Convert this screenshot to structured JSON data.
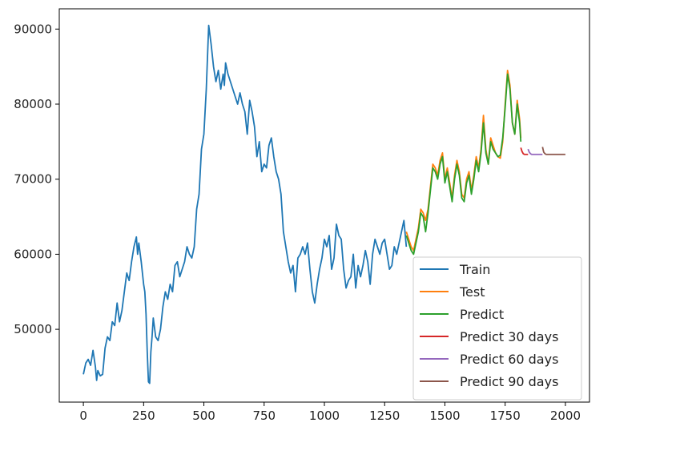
{
  "chart_data": {
    "type": "line",
    "title": "",
    "xlabel": "",
    "ylabel": "",
    "xlim": [
      -100,
      2100
    ],
    "ylim": [
      40300,
      92700
    ],
    "x_ticks": [
      0,
      250,
      500,
      750,
      1000,
      1250,
      1500,
      1750,
      2000
    ],
    "y_ticks": [
      50000,
      60000,
      70000,
      80000,
      90000
    ],
    "x_tick_labels": [
      "0",
      "250",
      "500",
      "750",
      "1000",
      "1250",
      "1500",
      "1750",
      "2000"
    ],
    "y_tick_labels": [
      "50000",
      "60000",
      "70000",
      "80000",
      "90000"
    ],
    "grid": false,
    "legend_position": "lower right",
    "series": [
      {
        "name": "Train",
        "color": "#1f77b4",
        "x": [
          0,
          10,
          20,
          30,
          40,
          50,
          55,
          60,
          70,
          80,
          90,
          100,
          110,
          120,
          130,
          140,
          150,
          160,
          170,
          180,
          190,
          200,
          210,
          220,
          225,
          230,
          240,
          250,
          255,
          260,
          265,
          270,
          275,
          280,
          285,
          290,
          300,
          310,
          320,
          330,
          340,
          350,
          360,
          370,
          380,
          390,
          400,
          410,
          420,
          430,
          440,
          450,
          460,
          470,
          480,
          490,
          500,
          510,
          520,
          530,
          540,
          550,
          560,
          570,
          575,
          580,
          585,
          590,
          600,
          610,
          620,
          630,
          640,
          650,
          660,
          670,
          680,
          690,
          700,
          710,
          720,
          730,
          740,
          750,
          760,
          770,
          780,
          790,
          800,
          810,
          820,
          830,
          840,
          850,
          860,
          870,
          880,
          890,
          900,
          910,
          920,
          930,
          940,
          950,
          960,
          970,
          980,
          990,
          1000,
          1010,
          1020,
          1030,
          1040,
          1050,
          1060,
          1070,
          1080,
          1090,
          1100,
          1110,
          1120,
          1130,
          1140,
          1150,
          1160,
          1170,
          1180,
          1190,
          1200,
          1210,
          1220,
          1230,
          1240,
          1250,
          1260,
          1270,
          1280,
          1290,
          1300,
          1310,
          1320,
          1330,
          1340
        ],
        "y": [
          44000,
          45500,
          46000,
          45200,
          47200,
          45000,
          43200,
          44500,
          43800,
          44000,
          47500,
          49000,
          48500,
          51000,
          50500,
          53500,
          51000,
          52500,
          55000,
          57500,
          56500,
          59000,
          61000,
          62300,
          60000,
          61500,
          59000,
          56000,
          55000,
          52000,
          47000,
          43000,
          42800,
          47000,
          49000,
          51500,
          49000,
          48500,
          50000,
          53000,
          55000,
          54000,
          56000,
          55000,
          58500,
          59000,
          57000,
          58000,
          59000,
          61000,
          60000,
          59500,
          61000,
          66000,
          68000,
          74000,
          76000,
          82000,
          90500,
          88000,
          85000,
          83000,
          84500,
          82000,
          83000,
          84000,
          82500,
          85500,
          84000,
          83000,
          82000,
          81000,
          80000,
          81500,
          80000,
          79000,
          76000,
          80500,
          79000,
          77000,
          73000,
          75000,
          71000,
          72000,
          71500,
          74500,
          75500,
          73000,
          71000,
          70000,
          68000,
          63000,
          61000,
          59000,
          57500,
          58500,
          55000,
          59500,
          60000,
          61000,
          60000,
          61500,
          58000,
          55000,
          53500,
          56000,
          58000,
          59500,
          62000,
          61000,
          62500,
          58000,
          59500,
          64000,
          62500,
          62000,
          58000,
          55500,
          56500,
          57000,
          60000,
          55500,
          58500,
          57000,
          58500,
          60500,
          59000,
          56000,
          60000,
          62000,
          61000,
          60000,
          61500,
          62000,
          60000,
          58000,
          58500,
          61000,
          60000,
          61500,
          63000,
          64500,
          61000
        ],
        "values_note": ""
      },
      {
        "name": "Test",
        "color": "#ff7f0e",
        "x": [
          1340,
          1350,
          1360,
          1370,
          1380,
          1390,
          1400,
          1410,
          1420,
          1430,
          1440,
          1450,
          1460,
          1470,
          1480,
          1490,
          1500,
          1510,
          1520,
          1530,
          1540,
          1550,
          1560,
          1570,
          1580,
          1590,
          1600,
          1610,
          1620,
          1630,
          1640,
          1650,
          1660,
          1670,
          1680,
          1690,
          1700,
          1710,
          1720,
          1730,
          1740,
          1750,
          1760,
          1770,
          1780,
          1790,
          1800,
          1810,
          1815
        ],
        "y": [
          63000,
          62000,
          61000,
          60500,
          62000,
          63500,
          66000,
          65500,
          64500,
          66000,
          69000,
          72000,
          71500,
          70500,
          72500,
          73500,
          70000,
          71500,
          69500,
          67500,
          70500,
          72500,
          71000,
          68000,
          67500,
          70000,
          71000,
          68500,
          70500,
          73000,
          71500,
          74000,
          78500,
          74000,
          72000,
          75500,
          74500,
          73500,
          73000,
          72800,
          75000,
          80000,
          84500,
          82500,
          77500,
          76000,
          80500,
          78000,
          75500
        ]
      },
      {
        "name": "Predict",
        "color": "#2ca02c",
        "x": [
          1340,
          1350,
          1360,
          1370,
          1380,
          1390,
          1400,
          1410,
          1420,
          1430,
          1440,
          1450,
          1460,
          1470,
          1480,
          1490,
          1500,
          1510,
          1520,
          1530,
          1540,
          1550,
          1560,
          1570,
          1580,
          1590,
          1600,
          1610,
          1620,
          1630,
          1640,
          1650,
          1660,
          1670,
          1680,
          1690,
          1700,
          1710,
          1720,
          1730,
          1740,
          1750,
          1760,
          1770,
          1780,
          1790,
          1800,
          1810,
          1815
        ],
        "y": [
          62500,
          61500,
          60500,
          60000,
          61500,
          63000,
          65500,
          65000,
          63000,
          65500,
          68500,
          71500,
          71000,
          70000,
          72000,
          73000,
          69500,
          71000,
          69000,
          67000,
          70000,
          72000,
          70500,
          67500,
          67000,
          69500,
          70500,
          68000,
          70000,
          72500,
          71000,
          73500,
          77500,
          73500,
          72000,
          75000,
          74000,
          73500,
          73000,
          73200,
          75500,
          79500,
          84000,
          82000,
          77500,
          76000,
          80000,
          77500,
          75000
        ]
      },
      {
        "name": "Predict 30 days",
        "color": "#d62728",
        "x": [
          1815,
          1820,
          1825,
          1830,
          1835,
          1840,
          1845
        ],
        "y": [
          74200,
          73700,
          73400,
          73300,
          73300,
          73300,
          73300
        ]
      },
      {
        "name": "Predict 60 days",
        "color": "#9467bd",
        "x": [
          1845,
          1850,
          1855,
          1860,
          1870,
          1880,
          1890,
          1900,
          1905
        ],
        "y": [
          74000,
          73600,
          73400,
          73300,
          73300,
          73300,
          73300,
          73300,
          73300
        ]
      },
      {
        "name": "Predict 90 days",
        "color": "#8c564b",
        "x": [
          1905,
          1910,
          1915,
          1920,
          1940,
          1960,
          1980,
          2000
        ],
        "y": [
          74300,
          73600,
          73400,
          73300,
          73300,
          73300,
          73300,
          73300
        ]
      }
    ]
  }
}
